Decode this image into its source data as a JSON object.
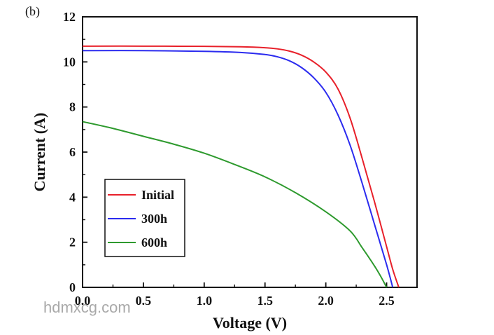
{
  "panel_label": "(b)",
  "watermark": "hdmxcg.com",
  "chart_data": {
    "type": "line",
    "title": "",
    "xlabel": "Voltage (V)",
    "ylabel": "Current (A)",
    "xlim": [
      0,
      2.75
    ],
    "ylim": [
      0,
      12
    ],
    "xticks": [
      0.0,
      0.5,
      1.0,
      1.5,
      2.0,
      2.5
    ],
    "xtick_labels": [
      "0.0",
      "0.5",
      "1.0",
      "1.5",
      "2.0",
      "2.5"
    ],
    "yticks": [
      0,
      2,
      4,
      6,
      8,
      10,
      12
    ],
    "ytick_labels": [
      "0",
      "2",
      "4",
      "6",
      "8",
      "10",
      "12"
    ],
    "grid": false,
    "legend_position": "lower-left",
    "series": [
      {
        "name": "Initial",
        "color": "#e8202a",
        "x": [
          0.0,
          0.5,
          1.0,
          1.3,
          1.5,
          1.6,
          1.7,
          1.8,
          1.9,
          2.0,
          2.1,
          2.2,
          2.3,
          2.4,
          2.5,
          2.55,
          2.6
        ],
        "y": [
          10.7,
          10.7,
          10.69,
          10.67,
          10.63,
          10.58,
          10.48,
          10.3,
          10.0,
          9.55,
          8.8,
          7.5,
          5.7,
          3.8,
          1.8,
          0.8,
          0.0
        ]
      },
      {
        "name": "300h",
        "color": "#2b2bef",
        "x": [
          0.0,
          0.5,
          1.0,
          1.3,
          1.5,
          1.6,
          1.7,
          1.8,
          1.9,
          2.0,
          2.1,
          2.2,
          2.3,
          2.4,
          2.5,
          2.55
        ],
        "y": [
          10.5,
          10.5,
          10.47,
          10.42,
          10.33,
          10.23,
          10.05,
          9.75,
          9.3,
          8.65,
          7.65,
          6.3,
          4.6,
          2.8,
          1.0,
          0.0
        ]
      },
      {
        "name": "600h",
        "color": "#2e9a2e",
        "x": [
          0.0,
          0.25,
          0.5,
          0.75,
          1.0,
          1.25,
          1.5,
          1.75,
          2.0,
          2.2,
          2.3,
          2.4,
          2.45,
          2.5
        ],
        "y": [
          7.35,
          7.05,
          6.7,
          6.35,
          5.95,
          5.45,
          4.9,
          4.2,
          3.35,
          2.5,
          1.75,
          0.95,
          0.5,
          0.0
        ]
      }
    ]
  }
}
